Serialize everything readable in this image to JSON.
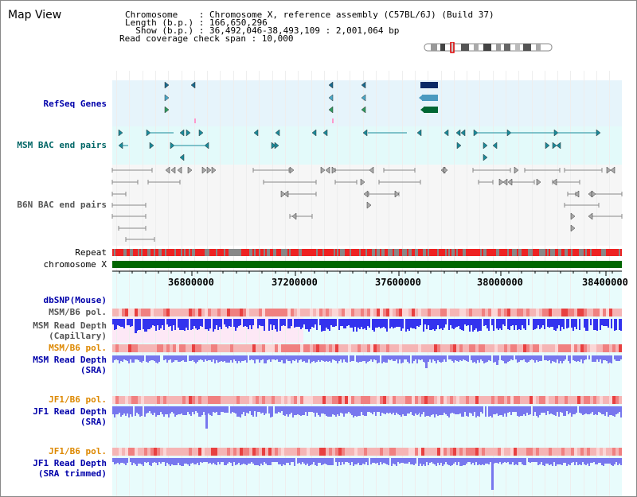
{
  "header": {
    "title": "Map View",
    "chromosome_line": "Chromosome    : Chromosome X, reference assembly (C57BL/6J) (Build 37)",
    "length_line": "Length (b.p.) : 166,650,296",
    "show_line": "  Show (b.p.) : 36,492,046-38,493,109 : 2,001,064 bp",
    "coverage_line": "Read coverage check span : 10,000"
  },
  "tracks": {
    "refseq": "RefSeq Genes",
    "msm_bac": "MSM BAC end pairs",
    "b6n_bac": "B6N BAC end pairs",
    "repeat": "Repeat",
    "chromosome": "chromosome X",
    "dbsnp": "dbSNP(Mouse)",
    "msm_b6_pol_1": "MSM/B6 pol.",
    "msm_depth_cap_1": "MSM Read Depth",
    "msm_depth_cap_2": "(Capillary)",
    "msm_b6_pol_2": "MSM/B6 pol.",
    "msm_depth_sra_1": "MSM Read Depth",
    "msm_depth_sra_2": "(SRA)",
    "jf1_b6_pol_1": "JF1/B6 pol.",
    "jf1_depth_sra_1": "JF1 Read Depth",
    "jf1_depth_sra_2": "(SRA)",
    "jf1_b6_pol_2": "JF1/B6 pol.",
    "jf1_depth_trim_1": "JF1 Read Depth",
    "jf1_depth_trim_2": "(SRA trimmed)"
  },
  "axis": {
    "ticks": [
      "36800000",
      "37200000",
      "37600000",
      "38000000",
      "38400000"
    ]
  },
  "colors": {
    "refseq_bg": "#e6f4fb",
    "msm_bac_bg": "#e3fafa",
    "b6n_bg": "#f6f6f6",
    "repeat_red": "#ee2222",
    "chrom_green": "#006600",
    "depth_blue": "#3333ee",
    "depth_light_blue": "#7777ee",
    "pol_pink": "#f5b5b5",
    "pol_red": "#e84040"
  }
}
